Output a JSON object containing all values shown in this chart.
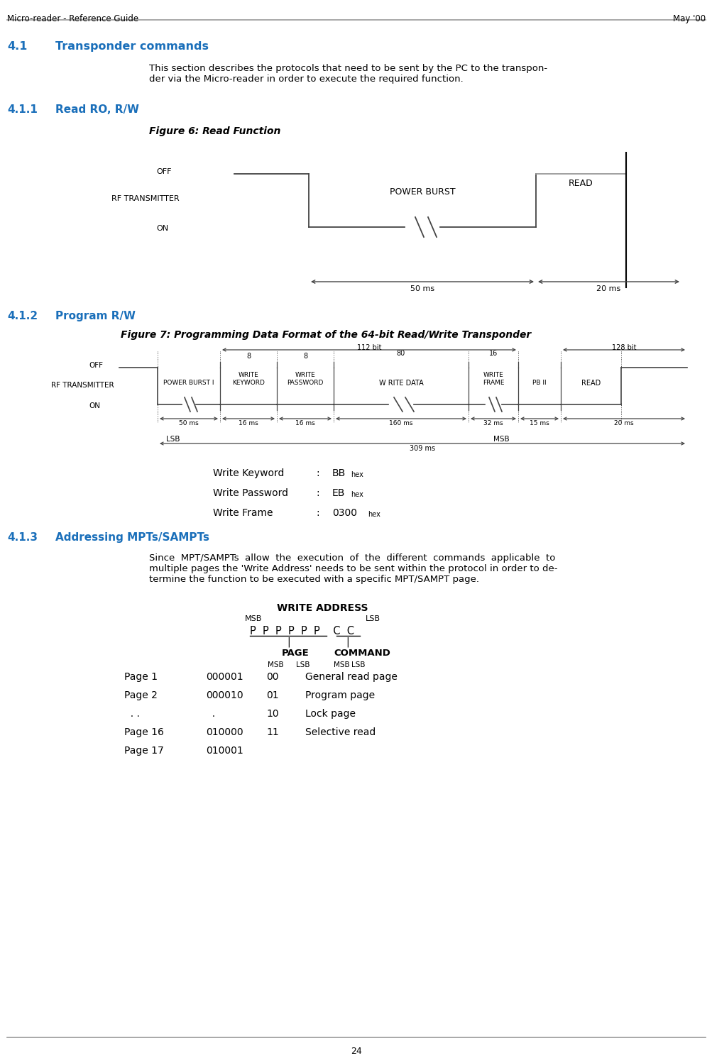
{
  "header_left": "Micro-reader - Reference Guide",
  "header_right": "May '00",
  "footer_page": "24",
  "bg_color": "#ffffff",
  "text_color": "#000000",
  "blue_color": "#1a6fba",
  "gray_color": "#999999",
  "line_color": "#000000",
  "diagram_color": "#444444"
}
